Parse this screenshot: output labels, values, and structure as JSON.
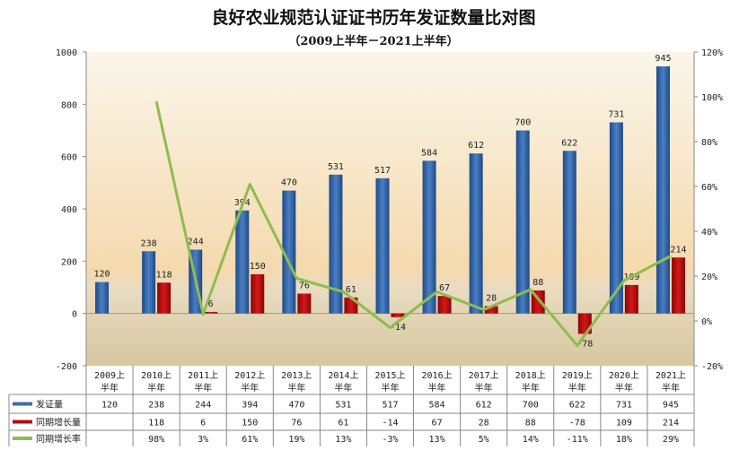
{
  "chart_data": {
    "type": "bar",
    "title": "良好农业规范认证证书历年发证数量比对图",
    "subtitle": "（2009上半年－2021上半年）",
    "categories": [
      "2009上半年",
      "2010上半年",
      "2011上半年",
      "2012上半年",
      "2013上半年",
      "2014上半年",
      "2015上半年",
      "2016上半年",
      "2017上半年",
      "2018上半年",
      "2019上半年",
      "2020上半年",
      "2021上半年"
    ],
    "category_lines": [
      [
        "2009上",
        "半年"
      ],
      [
        "2010上",
        "半年"
      ],
      [
        "2011上",
        "半年"
      ],
      [
        "2012上",
        "半年"
      ],
      [
        "2013上",
        "半年"
      ],
      [
        "2014上",
        "半年"
      ],
      [
        "2015上",
        "半年"
      ],
      [
        "2016上",
        "半年"
      ],
      [
        "2017上",
        "半年"
      ],
      [
        "2018上",
        "半年"
      ],
      [
        "2019上",
        "半年"
      ],
      [
        "2020上",
        "半年"
      ],
      [
        "2021上",
        "半年"
      ]
    ],
    "series": [
      {
        "name": "发证量",
        "type": "bar",
        "axis": "left",
        "color": "#2e5fa0",
        "values": [
          120,
          238,
          244,
          394,
          470,
          531,
          517,
          584,
          612,
          700,
          622,
          731,
          945
        ]
      },
      {
        "name": "同期增长量",
        "type": "bar",
        "axis": "left",
        "color": "#b50a0a",
        "values": [
          null,
          118,
          6,
          150,
          76,
          61,
          -14,
          67,
          28,
          88,
          -78,
          109,
          214
        ]
      },
      {
        "name": "同期增长率",
        "type": "line",
        "axis": "right",
        "color": "#8fbc4f",
        "values": [
          null,
          98,
          3,
          61,
          19,
          13,
          -3,
          13,
          5,
          14,
          -11,
          18,
          29
        ],
        "labels": [
          "",
          "98%",
          "3%",
          "61%",
          "19%",
          "13%",
          "-3%",
          "13%",
          "5%",
          "14%",
          "-11%",
          "18%",
          "29%"
        ]
      }
    ],
    "ylim": [
      -200,
      1000
    ],
    "yticks": [
      -200,
      0,
      200,
      400,
      600,
      800,
      1000
    ],
    "y2lim": [
      -20,
      120
    ],
    "y2ticks": [
      "-20%",
      "0%",
      "20%",
      "40%",
      "60%",
      "80%",
      "100%",
      "120%"
    ],
    "y2tick_values": [
      -20,
      0,
      20,
      40,
      60,
      80,
      100,
      120
    ],
    "legend": "data-table"
  }
}
